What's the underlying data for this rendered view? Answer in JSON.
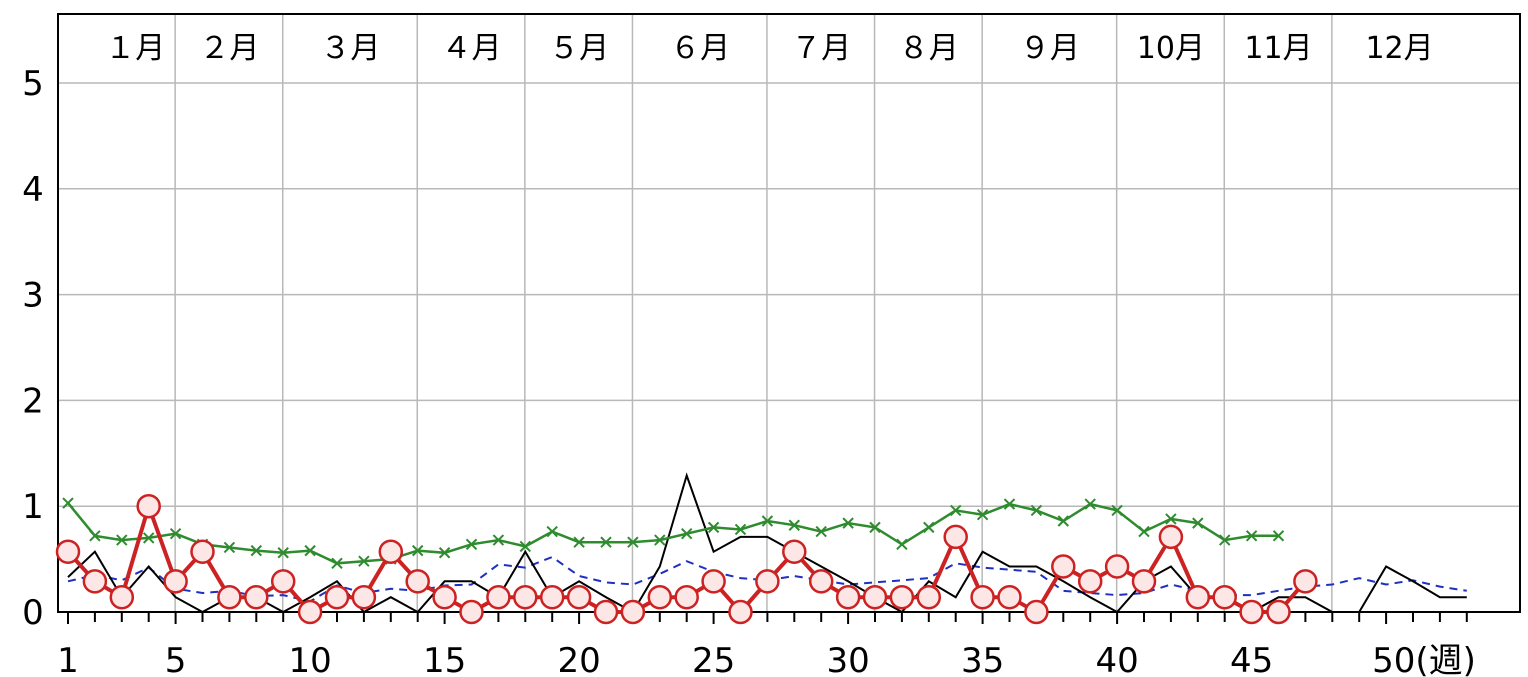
{
  "chart_data": {
    "type": "line",
    "title": "",
    "xlabel": "",
    "ylabel": "",
    "x_unit_label": "(週)",
    "xlim": [
      1,
      53
    ],
    "ylim": [
      0,
      5.5
    ],
    "grid": true,
    "y_ticks": [
      0,
      1,
      2,
      3,
      4,
      5
    ],
    "x_ticks": [
      1,
      5,
      10,
      15,
      20,
      25,
      30,
      35,
      40,
      45,
      50
    ],
    "x_tick_labels": [
      "1",
      "5",
      "10",
      "15",
      "20",
      "25",
      "30",
      "35",
      "40",
      "45",
      "50(週)"
    ],
    "months": [
      {
        "label": "１月",
        "week": 3.5
      },
      {
        "label": "２月",
        "week": 7
      },
      {
        "label": "３月",
        "week": 11.5
      },
      {
        "label": "４月",
        "week": 16
      },
      {
        "label": "５月",
        "week": 20
      },
      {
        "label": "６月",
        "week": 24.5
      },
      {
        "label": "７月",
        "week": 29
      },
      {
        "label": "８月",
        "week": 33
      },
      {
        "label": "９月",
        "week": 37.5
      },
      {
        "label": "10月",
        "week": 42
      },
      {
        "label": "11月",
        "week": 46
      },
      {
        "label": "12月",
        "week": 50.5
      }
    ],
    "month_boundaries": [
      5,
      9,
      14,
      18,
      22,
      27,
      31,
      35,
      40,
      44,
      48
    ],
    "series": [
      {
        "color": "#cc2222",
        "marker": "circle",
        "style": "solid-bold",
        "x": [
          1,
          2,
          3,
          4,
          5,
          6,
          7,
          8,
          9,
          10,
          11,
          12,
          13,
          14,
          15,
          16,
          17,
          18,
          19,
          20,
          21,
          22,
          23,
          24,
          25,
          26,
          27,
          28,
          29,
          30,
          31,
          32,
          33,
          34,
          35,
          36,
          37,
          38,
          39,
          40,
          41,
          42,
          43,
          44,
          45,
          46,
          47
        ],
        "values": [
          0.57,
          0.29,
          0.14,
          1.0,
          0.29,
          0.57,
          0.14,
          0.14,
          0.29,
          0.0,
          0.14,
          0.14,
          0.57,
          0.29,
          0.14,
          0.0,
          0.14,
          0.14,
          0.14,
          0.14,
          0.0,
          0.0,
          0.14,
          0.14,
          0.29,
          0.0,
          0.29,
          0.57,
          0.29,
          0.14,
          0.14,
          0.14,
          0.14,
          0.71,
          0.14,
          0.14,
          0.0,
          0.43,
          0.29,
          0.43,
          0.29,
          0.71,
          0.14,
          0.14,
          0.0,
          0.0,
          0.29
        ]
      },
      {
        "color": "#2e8b2e",
        "marker": "x",
        "style": "solid",
        "x": [
          1,
          2,
          3,
          4,
          5,
          6,
          7,
          8,
          9,
          10,
          11,
          12,
          13,
          14,
          15,
          16,
          17,
          18,
          19,
          20,
          21,
          22,
          23,
          24,
          25,
          26,
          27,
          28,
          29,
          30,
          31,
          32,
          33,
          34,
          35,
          36,
          37,
          38,
          39,
          40,
          41,
          42,
          43,
          44,
          45,
          46
        ],
        "values": [
          1.03,
          0.72,
          0.68,
          0.7,
          0.74,
          0.64,
          0.61,
          0.58,
          0.56,
          0.58,
          0.46,
          0.48,
          0.5,
          0.58,
          0.56,
          0.64,
          0.68,
          0.62,
          0.76,
          0.66,
          0.66,
          0.66,
          0.68,
          0.74,
          0.8,
          0.78,
          0.86,
          0.82,
          0.76,
          0.84,
          0.8,
          0.64,
          0.8,
          0.96,
          0.92,
          1.02,
          0.96,
          0.86,
          1.02,
          0.96,
          0.76,
          0.88,
          0.84,
          0.68,
          0.72,
          0.72
        ]
      },
      {
        "color": "#000000",
        "marker": "none",
        "style": "solid-thin",
        "x": [
          1,
          2,
          3,
          4,
          5,
          6,
          7,
          8,
          9,
          10,
          11,
          12,
          13,
          14,
          15,
          16,
          17,
          18,
          19,
          20,
          21,
          22,
          23,
          24,
          25,
          26,
          27,
          28,
          29,
          30,
          31,
          32,
          33,
          34,
          35,
          36,
          37,
          38,
          39,
          40,
          41,
          42,
          43,
          44,
          45,
          46,
          47,
          48,
          49,
          50,
          51,
          52,
          53
        ],
        "values": [
          0.33,
          0.57,
          0.14,
          0.43,
          0.14,
          0.0,
          0.14,
          0.14,
          0.0,
          0.14,
          0.29,
          0.0,
          0.14,
          0.0,
          0.29,
          0.29,
          0.14,
          0.57,
          0.14,
          0.29,
          0.14,
          0.0,
          0.43,
          1.29,
          0.57,
          0.71,
          0.71,
          0.57,
          0.43,
          0.29,
          0.14,
          0.0,
          0.29,
          0.14,
          0.57,
          0.43,
          0.43,
          0.29,
          0.14,
          0.0,
          0.29,
          0.43,
          0.14,
          0.14,
          0.0,
          0.14,
          0.14,
          0.0,
          0.0,
          0.43,
          0.29,
          0.14,
          0.14
        ]
      },
      {
        "color": "#1f2fbf",
        "marker": "none",
        "style": "dashed",
        "x": [
          1,
          2,
          3,
          4,
          5,
          6,
          7,
          8,
          9,
          10,
          11,
          12,
          13,
          14,
          15,
          16,
          17,
          18,
          19,
          20,
          21,
          22,
          23,
          24,
          25,
          26,
          27,
          28,
          29,
          30,
          31,
          32,
          33,
          34,
          35,
          36,
          37,
          38,
          39,
          40,
          41,
          42,
          43,
          44,
          45,
          46,
          47,
          48,
          49,
          50,
          51,
          52,
          53
        ],
        "values": [
          0.29,
          0.35,
          0.3,
          0.42,
          0.22,
          0.18,
          0.2,
          0.15,
          0.16,
          0.1,
          0.25,
          0.18,
          0.22,
          0.2,
          0.25,
          0.26,
          0.45,
          0.42,
          0.52,
          0.34,
          0.28,
          0.26,
          0.36,
          0.48,
          0.38,
          0.32,
          0.3,
          0.34,
          0.3,
          0.26,
          0.28,
          0.3,
          0.32,
          0.46,
          0.42,
          0.4,
          0.38,
          0.2,
          0.18,
          0.16,
          0.18,
          0.26,
          0.2,
          0.16,
          0.16,
          0.2,
          0.24,
          0.26,
          0.32,
          0.26,
          0.3,
          0.24,
          0.2
        ]
      }
    ]
  }
}
